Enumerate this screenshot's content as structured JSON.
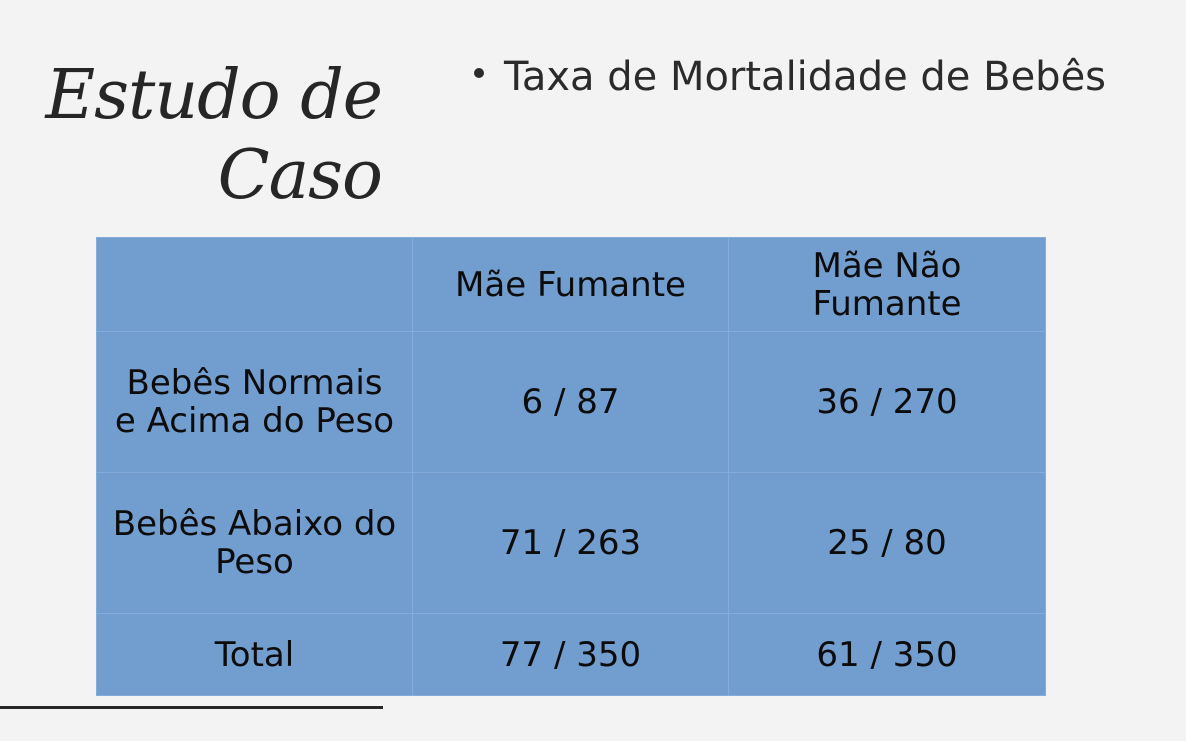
{
  "slide": {
    "title_line1": "Estudo de",
    "title_line2": "Caso",
    "bullet": "Taxa de Mortalidade de Bebês"
  },
  "table": {
    "headers": [
      "",
      "Mãe Fumante",
      "Mãe Não Fumante"
    ],
    "rows": [
      {
        "label": "Bebês Normais e Acima do Peso",
        "smoker": "6 / 87",
        "non_smoker": "36 / 270"
      },
      {
        "label": "Bebês Abaixo do Peso",
        "smoker": "71 / 263",
        "non_smoker": "25 / 80"
      },
      {
        "label": "Total",
        "smoker": "77 / 350",
        "non_smoker": "61 / 350"
      }
    ]
  },
  "colors": {
    "background": "#f3f3f3",
    "table_fill": "#729dcf",
    "table_border": "#86acd9",
    "text": "#2b2b2b"
  }
}
